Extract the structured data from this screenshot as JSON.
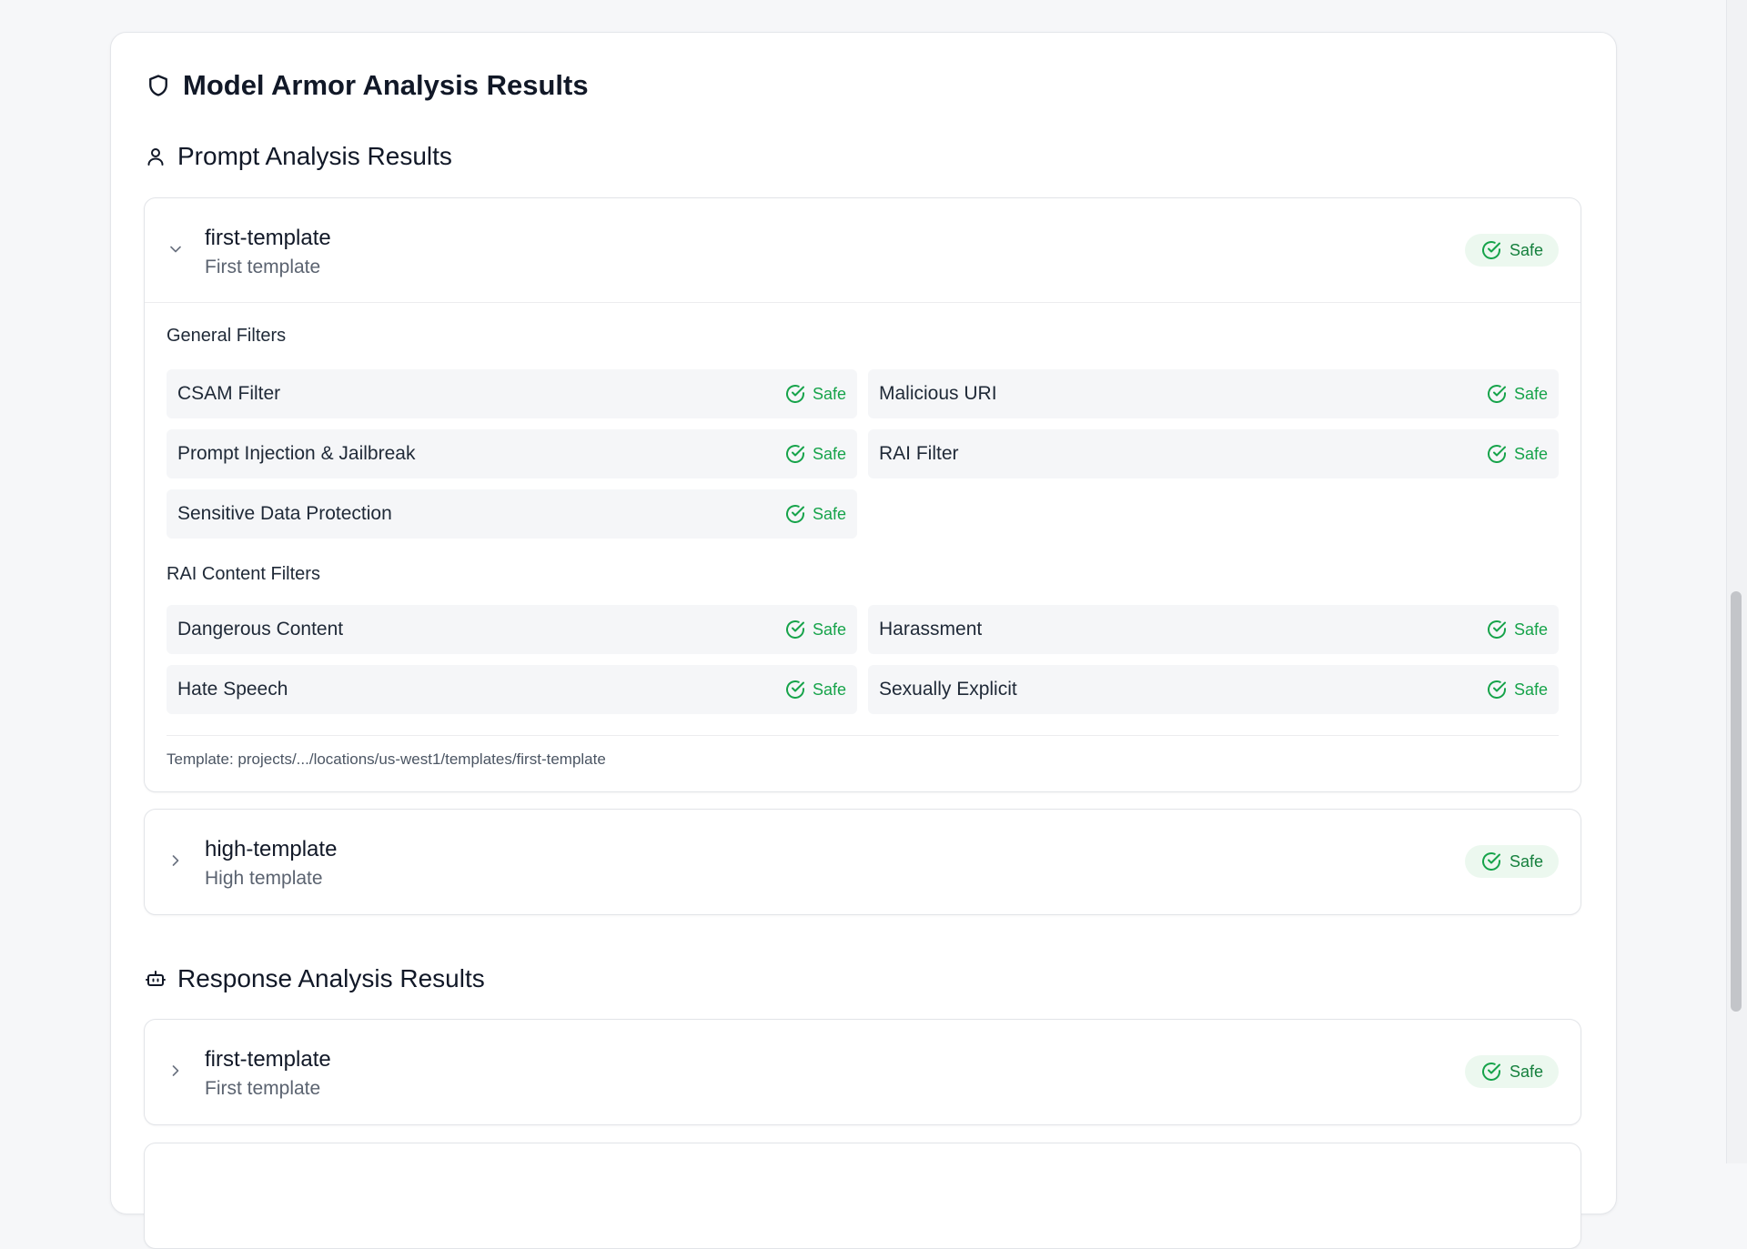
{
  "page": {
    "title": "Model Armor Analysis Results"
  },
  "prompt_section": {
    "title": "Prompt Analysis Results",
    "templates": [
      {
        "name": "first-template",
        "description": "First template",
        "status": "Safe",
        "expanded": true,
        "general_filters_label": "General Filters",
        "general_filters": [
          {
            "name": "CSAM Filter",
            "status": "Safe"
          },
          {
            "name": "Malicious URI",
            "status": "Safe"
          },
          {
            "name": "Prompt Injection & Jailbreak",
            "status": "Safe"
          },
          {
            "name": "RAI Filter",
            "status": "Safe"
          },
          {
            "name": "Sensitive Data Protection",
            "status": "Safe"
          }
        ],
        "rai_filters_label": "RAI Content Filters",
        "rai_filters": [
          {
            "name": "Dangerous Content",
            "status": "Safe"
          },
          {
            "name": "Harassment",
            "status": "Safe"
          },
          {
            "name": "Hate Speech",
            "status": "Safe"
          },
          {
            "name": "Sexually Explicit",
            "status": "Safe"
          }
        ],
        "footer": "Template: projects/.../locations/us-west1/templates/first-template"
      },
      {
        "name": "high-template",
        "description": "High template",
        "status": "Safe",
        "expanded": false
      }
    ]
  },
  "response_section": {
    "title": "Response Analysis Results",
    "templates": [
      {
        "name": "first-template",
        "description": "First template",
        "status": "Safe",
        "expanded": false
      }
    ]
  },
  "colors": {
    "safe_text": "#16a34a",
    "safe_badge_bg": "#ecf8ef",
    "card_border": "#e2e4e8",
    "filter_row_bg": "#f5f6f8"
  },
  "icons": {
    "title": "shield-icon",
    "prompt_section": "user-icon",
    "response_section": "bot-icon",
    "status": "check-circle-icon",
    "expanded": "chevron-down-icon",
    "collapsed": "chevron-right-icon"
  }
}
